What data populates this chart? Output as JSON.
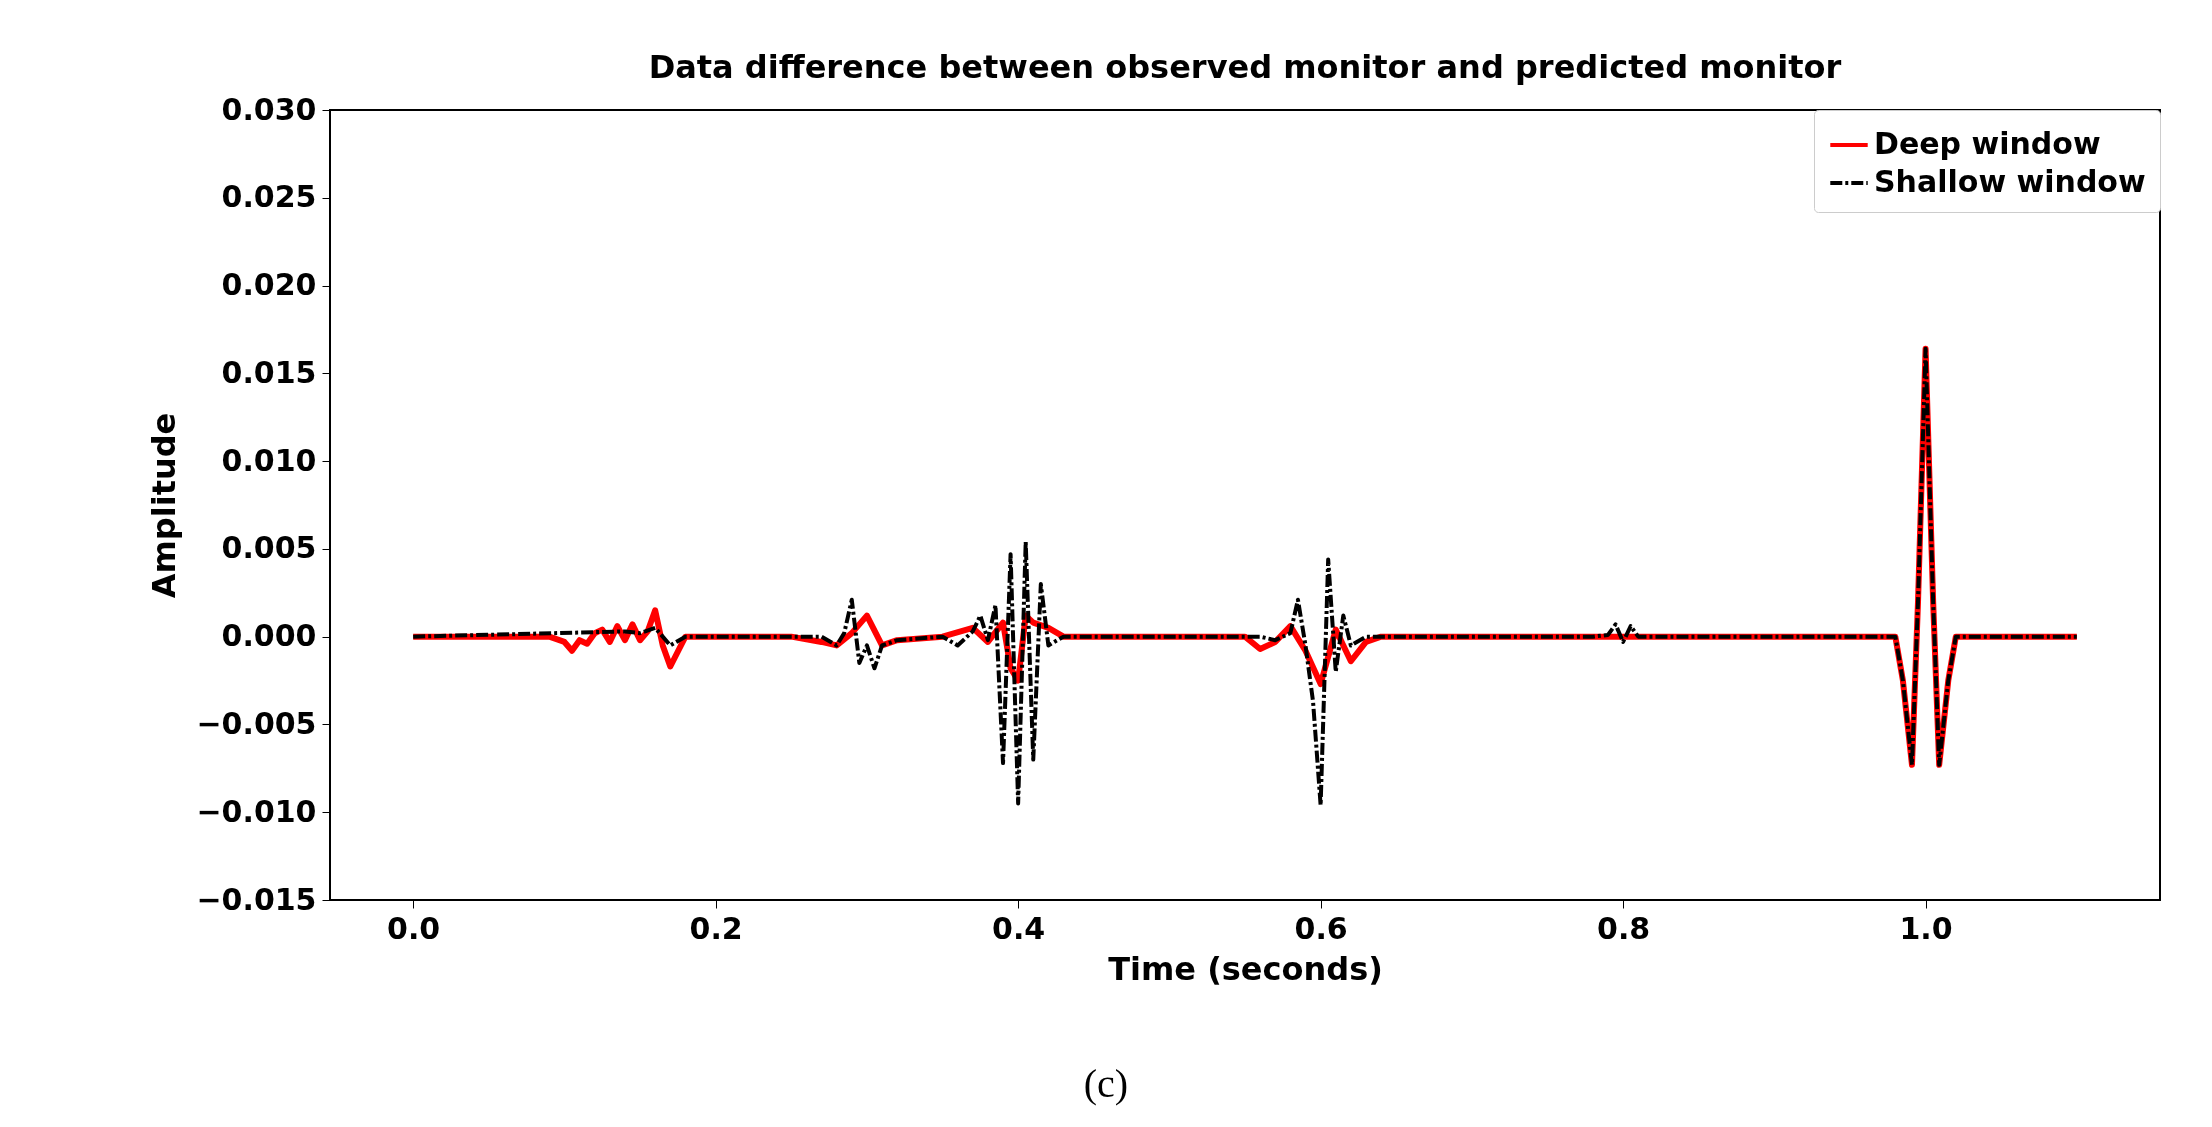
{
  "chart_data": {
    "type": "line",
    "title": "Data difference between observed monitor and predicted monitor",
    "xlabel": "Time (seconds)",
    "ylabel": "Amplitude",
    "annotations": [
      "(c)"
    ],
    "xlim": [
      -0.055,
      1.155
    ],
    "xticks": [
      {
        "value": 0,
        "label": "0.0"
      },
      0.2,
      0.4,
      0.6,
      0.8,
      {
        "value": 1,
        "label": "1.0"
      }
    ],
    "ylim": [
      -0.015,
      0.03
    ],
    "yticks": [
      {
        "value": -0.015,
        "label": "−0.015"
      },
      {
        "value": -0.01,
        "label": "−0.010"
      },
      {
        "value": -0.005,
        "label": "−0.005"
      },
      {
        "value": 0,
        "label": "0.000"
      },
      {
        "value": 0.005,
        "label": "0.005"
      },
      {
        "value": 0.01,
        "label": "0.010"
      },
      {
        "value": 0.015,
        "label": "0.015"
      },
      {
        "value": 0.02,
        "label": "0.020"
      },
      {
        "value": 0.025,
        "label": "0.025"
      },
      {
        "value": 0.03,
        "label": "0.030"
      }
    ],
    "grid": false,
    "legend": "top right",
    "marker": "none",
    "series": [
      {
        "name": "Deep window",
        "color": "#ff0000",
        "line_style": "solid",
        "x": [
          0,
          0.09,
          0.1,
          0.105,
          0.11,
          0.115,
          0.12,
          0.125,
          0.13,
          0.135,
          0.14,
          0.145,
          0.15,
          0.155,
          0.16,
          0.165,
          0.17,
          0.18,
          0.25,
          0.27,
          0.28,
          0.29,
          0.3,
          0.31,
          0.32,
          0.35,
          0.37,
          0.38,
          0.39,
          0.395,
          0.4,
          0.405,
          0.41,
          0.42,
          0.43,
          0.55,
          0.56,
          0.57,
          0.58,
          0.59,
          0.6,
          0.61,
          0.62,
          0.63,
          0.64,
          0.98,
          0.985,
          0.991,
          0.995,
          1.0,
          1.005,
          1.009,
          1.015,
          1.02,
          1.1
        ],
        "values": [
          0,
          0,
          -0.0003,
          -0.0008,
          -0.0002,
          -0.0004,
          0.0002,
          0.0004,
          -0.0003,
          0.0006,
          -0.0002,
          0.0007,
          -0.0002,
          0.0003,
          0.0015,
          -0.0005,
          -0.0017,
          0,
          0,
          -0.0003,
          -0.0005,
          0.0002,
          0.0012,
          -0.0005,
          -0.0002,
          0,
          0.0005,
          -0.0003,
          0.0008,
          -0.0018,
          -0.0025,
          0.0012,
          0.0008,
          0.0005,
          0,
          0,
          -0.0007,
          -0.0003,
          0.0006,
          -0.0008,
          -0.0027,
          0.0004,
          -0.0014,
          -0.0003,
          0,
          0,
          -0.0025,
          -0.0073,
          0.002,
          0.0164,
          0.002,
          -0.0073,
          -0.0025,
          0,
          0
        ]
      },
      {
        "name": "Shallow window",
        "color": "#000000",
        "line_style": "dashed",
        "x": [
          0,
          0.14,
          0.15,
          0.16,
          0.17,
          0.18,
          0.27,
          0.28,
          0.285,
          0.29,
          0.295,
          0.3,
          0.305,
          0.31,
          0.32,
          0.35,
          0.36,
          0.37,
          0.375,
          0.38,
          0.385,
          0.39,
          0.395,
          0.4,
          0.405,
          0.41,
          0.415,
          0.42,
          0.43,
          0.56,
          0.57,
          0.58,
          0.585,
          0.59,
          0.595,
          0.6,
          0.605,
          0.61,
          0.615,
          0.62,
          0.63,
          0.78,
          0.79,
          0.795,
          0.8,
          0.805,
          0.81,
          0.98,
          0.985,
          0.991,
          0.995,
          1.0,
          1.005,
          1.009,
          1.015,
          1.02,
          1.1
        ],
        "values": [
          0,
          0.0003,
          0.0002,
          0.0005,
          -0.0005,
          0,
          0,
          -0.0005,
          0.0002,
          0.0021,
          -0.0015,
          -0.0005,
          -0.0018,
          -0.0005,
          -0.0002,
          0,
          -0.0005,
          0.0003,
          0.0012,
          -0.0002,
          0.0018,
          -0.0072,
          0.0047,
          -0.0095,
          0.0054,
          -0.007,
          0.003,
          -0.0005,
          0,
          0,
          -0.0002,
          0.0002,
          0.0021,
          -0.0005,
          -0.0037,
          -0.0096,
          0.0044,
          -0.002,
          0.0012,
          -0.0005,
          0,
          0,
          0.0001,
          0.0007,
          -0.0003,
          0.0006,
          0,
          0,
          -0.0025,
          -0.0073,
          0.002,
          0.0164,
          0.002,
          -0.0073,
          -0.0025,
          0,
          0
        ]
      }
    ]
  }
}
